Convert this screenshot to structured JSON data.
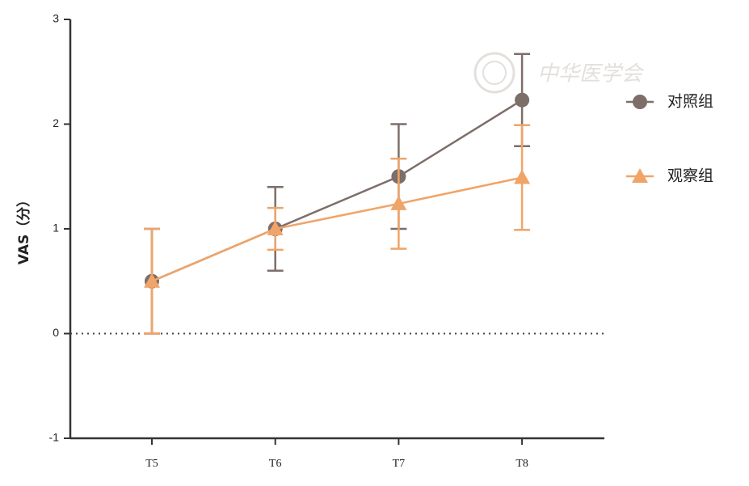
{
  "chart_data": {
    "type": "line",
    "y_label": "VAS（分）",
    "watermark": "中华医学会",
    "categories": [
      "T5",
      "T6",
      "T7",
      "T8"
    ],
    "series": [
      {
        "name": "对照组",
        "color": "#7d6e6a",
        "marker": "circle",
        "values": [
          0.5,
          1.0,
          1.5,
          2.23
        ],
        "errors": [
          0.5,
          0.4,
          0.5,
          0.44
        ]
      },
      {
        "name": "观察组",
        "color": "#f0a468",
        "marker": "triangle",
        "values": [
          0.5,
          1.0,
          1.24,
          1.49
        ],
        "errors": [
          0.5,
          0.2,
          0.43,
          0.5
        ]
      }
    ],
    "ylim": [
      -1,
      3
    ],
    "yticks": [
      -1,
      0,
      1,
      2,
      3
    ],
    "reference_line": 0
  }
}
